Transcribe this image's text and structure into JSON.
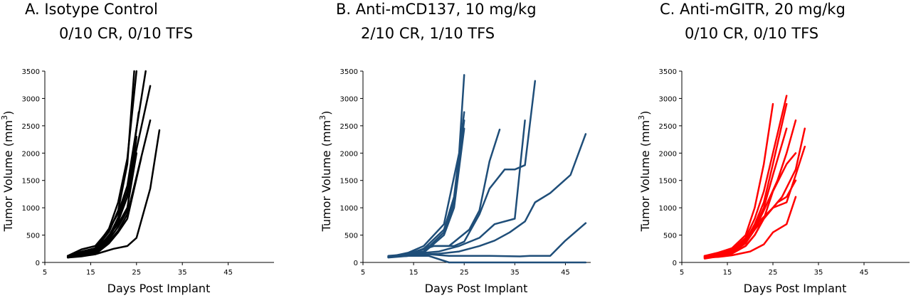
{
  "chart_data": [
    {
      "type": "line",
      "title": "A.  Isotype Control",
      "subtitle": "0/10 CR, 0/10 TFS",
      "xlabel": "Days Post Implant",
      "ylabel": "Tumor Volume (mm3)",
      "ylabel_main": "Tumor Volume (mm",
      "ylabel_sup": "3",
      "ylabel_close": ")",
      "xlim": [
        5,
        55
      ],
      "ylim": [
        0,
        3500
      ],
      "xticks": [
        "5",
        "15",
        "25",
        "35",
        "45"
      ],
      "yticks": [
        "0",
        "500",
        "1000",
        "1500",
        "2000",
        "2500",
        "3000",
        "3500"
      ],
      "color": "#000000",
      "series": [
        {
          "x": [
            10,
            13,
            16,
            19,
            21,
            23,
            25
          ],
          "y": [
            110,
            200,
            260,
            620,
            1100,
            1900,
            3500
          ]
        },
        {
          "x": [
            10,
            13,
            16,
            19,
            21,
            23,
            24.5
          ],
          "y": [
            100,
            170,
            240,
            560,
            950,
            1800,
            3500
          ]
        },
        {
          "x": [
            10,
            13,
            16,
            19,
            21,
            23,
            27
          ],
          "y": [
            120,
            240,
            300,
            600,
            900,
            1400,
            3500
          ]
        },
        {
          "x": [
            10,
            13,
            16,
            19,
            21,
            23,
            25.5
          ],
          "y": [
            100,
            160,
            210,
            450,
            750,
            1200,
            2750
          ]
        },
        {
          "x": [
            10,
            13,
            16,
            19,
            21,
            23,
            28
          ],
          "y": [
            110,
            190,
            240,
            480,
            820,
            1300,
            3230
          ]
        },
        {
          "x": [
            10,
            13,
            16,
            19,
            21,
            23,
            25
          ],
          "y": [
            100,
            140,
            180,
            420,
            650,
            950,
            2300
          ]
        },
        {
          "x": [
            10,
            13,
            16,
            19,
            21,
            23,
            28
          ],
          "y": [
            90,
            130,
            170,
            380,
            580,
            880,
            2600
          ]
        },
        {
          "x": [
            10,
            13,
            16,
            19,
            21,
            23,
            25
          ],
          "y": [
            120,
            150,
            190,
            500,
            700,
            1000,
            2000
          ]
        },
        {
          "x": [
            10,
            13,
            16,
            19,
            21,
            23,
            26
          ],
          "y": [
            100,
            120,
            150,
            350,
            550,
            800,
            1900
          ]
        },
        {
          "x": [
            10,
            13,
            16,
            20,
            23,
            25,
            28,
            30
          ],
          "y": [
            90,
            110,
            150,
            250,
            300,
            450,
            1350,
            2420
          ]
        }
      ]
    },
    {
      "type": "line",
      "title": "B.  Anti-mCD137, 10 mg/kg",
      "subtitle": "2/10 CR, 1/10 TFS",
      "xlabel": "Days Post Implant",
      "ylabel": "Tumor Volume (mm3)",
      "ylabel_main": "Tumor Volume (mm",
      "ylabel_sup": "3",
      "ylabel_close": ")",
      "xlim": [
        5,
        50
      ],
      "ylim": [
        0,
        3500
      ],
      "xticks": [
        "5",
        "15",
        "25",
        "35",
        "45"
      ],
      "yticks": [
        "0",
        "500",
        "1000",
        "1500",
        "2000",
        "2500",
        "3000",
        "3500"
      ],
      "color": "#1f4e79",
      "series": [
        {
          "x": [
            10,
            14,
            17,
            21,
            24,
            25
          ],
          "y": [
            100,
            180,
            300,
            700,
            2000,
            3430
          ]
        },
        {
          "x": [
            10,
            14,
            17,
            21,
            23,
            25
          ],
          "y": [
            100,
            160,
            250,
            600,
            1200,
            2750
          ]
        },
        {
          "x": [
            10,
            14,
            17,
            21,
            23,
            25
          ],
          "y": [
            120,
            150,
            200,
            550,
            1100,
            2600
          ]
        },
        {
          "x": [
            10,
            14,
            17,
            21,
            23,
            25
          ],
          "y": [
            110,
            130,
            180,
            500,
            1000,
            2450
          ]
        },
        {
          "x": [
            10,
            14,
            18,
            22,
            26,
            28,
            30,
            32
          ],
          "y": [
            90,
            120,
            300,
            300,
            600,
            950,
            1850,
            2430
          ]
        },
        {
          "x": [
            10,
            15,
            19,
            23,
            25,
            28,
            30,
            33,
            35,
            37,
            39
          ],
          "y": [
            100,
            180,
            300,
            300,
            380,
            880,
            1350,
            1700,
            1700,
            1780,
            3320
          ]
        },
        {
          "x": [
            10,
            15,
            20,
            24,
            28,
            31,
            35,
            37
          ],
          "y": [
            110,
            160,
            200,
            300,
            450,
            700,
            800,
            2600
          ]
        },
        {
          "x": [
            10,
            15,
            20,
            24,
            28,
            31,
            34,
            37,
            39,
            42,
            46,
            49
          ],
          "y": [
            100,
            140,
            160,
            200,
            300,
            400,
            550,
            750,
            1100,
            1270,
            1600,
            2350
          ]
        },
        {
          "x": [
            10,
            14,
            18,
            22,
            26,
            30,
            36,
            38,
            42,
            45,
            49
          ],
          "y": [
            100,
            120,
            150,
            120,
            120,
            120,
            110,
            120,
            120,
            400,
            720
          ]
        },
        {
          "x": [
            10,
            14,
            18,
            22,
            26,
            49
          ],
          "y": [
            100,
            120,
            120,
            0,
            0,
            0
          ]
        }
      ]
    },
    {
      "type": "line",
      "title": "C.  Anti-mGITR, 20 mg/kg",
      "subtitle": "0/10 CR, 0/10 TFS",
      "xlabel": "Days Post Implant",
      "ylabel": "Tumor Volume (mm3)",
      "ylabel_main": "Tumor Volume (mm",
      "ylabel_sup": "3",
      "ylabel_close": ")",
      "xlim": [
        5,
        55
      ],
      "ylim": [
        0,
        3500
      ],
      "xticks": [
        "5",
        "15",
        "25",
        "35",
        "45"
      ],
      "yticks": [
        "0",
        "500",
        "1000",
        "1500",
        "2000",
        "2500",
        "3000",
        "3500"
      ],
      "color": "#ff0000",
      "series": [
        {
          "x": [
            10,
            13,
            16,
            19,
            21,
            23,
            25
          ],
          "y": [
            120,
            180,
            260,
            500,
            1000,
            1800,
            2900
          ]
        },
        {
          "x": [
            10,
            13,
            16,
            19,
            21,
            23,
            25,
            28
          ],
          "y": [
            100,
            160,
            230,
            450,
            800,
            1300,
            2000,
            3050
          ]
        },
        {
          "x": [
            10,
            13,
            16,
            19,
            21,
            23,
            25,
            28
          ],
          "y": [
            110,
            150,
            200,
            400,
            700,
            1100,
            1800,
            2900
          ]
        },
        {
          "x": [
            10,
            13,
            16,
            19,
            21,
            23,
            25,
            28
          ],
          "y": [
            90,
            140,
            190,
            380,
            650,
            1000,
            1600,
            2450
          ]
        },
        {
          "x": [
            10,
            13,
            16,
            19,
            21,
            23,
            26,
            28,
            30
          ],
          "y": [
            100,
            130,
            180,
            350,
            600,
            950,
            1500,
            2000,
            2600
          ]
        },
        {
          "x": [
            10,
            13,
            16,
            19,
            21,
            23,
            25,
            28,
            30
          ],
          "y": [
            80,
            120,
            170,
            300,
            500,
            800,
            1300,
            1800,
            2000
          ]
        },
        {
          "x": [
            10,
            13,
            16,
            19,
            21,
            24,
            27,
            30,
            32
          ],
          "y": [
            100,
            140,
            200,
            400,
            600,
            900,
            1200,
            1700,
            2450
          ]
        },
        {
          "x": [
            10,
            13,
            16,
            19,
            22,
            25,
            28,
            30,
            32
          ],
          "y": [
            120,
            130,
            180,
            420,
            750,
            1000,
            1100,
            1600,
            2120
          ]
        },
        {
          "x": [
            10,
            13,
            16,
            19,
            21,
            23,
            26,
            28,
            30
          ],
          "y": [
            70,
            110,
            160,
            300,
            500,
            800,
            1100,
            1200,
            1500
          ]
        },
        {
          "x": [
            10,
            13,
            16,
            20,
            23,
            25,
            28,
            30
          ],
          "y": [
            90,
            100,
            130,
            200,
            330,
            550,
            700,
            1200
          ]
        }
      ]
    }
  ]
}
